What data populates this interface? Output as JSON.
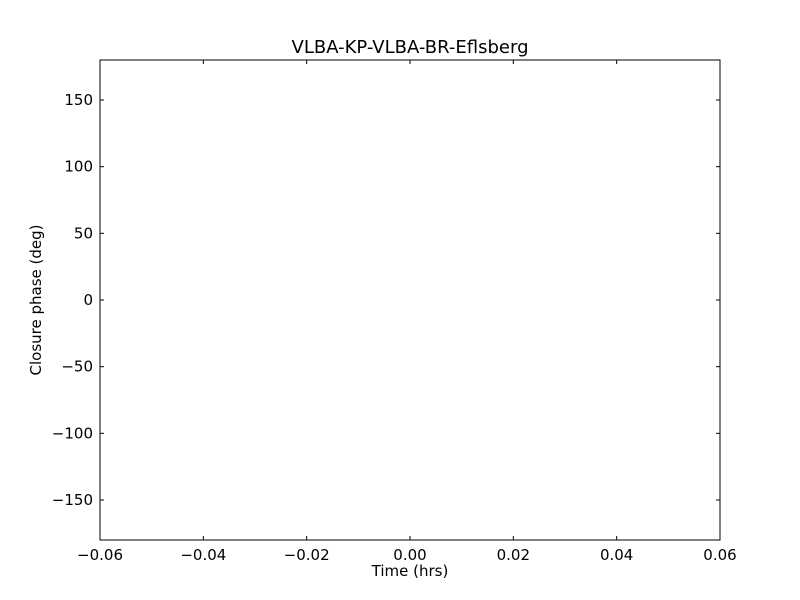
{
  "chart_data": {
    "type": "scatter",
    "title": "VLBA-KP-VLBA-BR-Eflsberg",
    "xlabel": "Time (hrs)",
    "ylabel": "Closure phase (deg)",
    "xlim": [
      -0.06,
      0.06
    ],
    "ylim": [
      -180,
      180
    ],
    "xticks": [
      -0.06,
      -0.04,
      -0.02,
      0.0,
      0.02,
      0.04,
      0.06
    ],
    "xtick_labels": [
      "−0.06",
      "−0.04",
      "−0.02",
      "0.00",
      "0.02",
      "0.04",
      "0.06"
    ],
    "yticks": [
      150,
      100,
      50,
      0,
      -50,
      -100,
      -150
    ],
    "ytick_labels": [
      "150",
      "100",
      "50",
      "0",
      "−50",
      "−100",
      "−150"
    ],
    "grid": false,
    "series": []
  }
}
